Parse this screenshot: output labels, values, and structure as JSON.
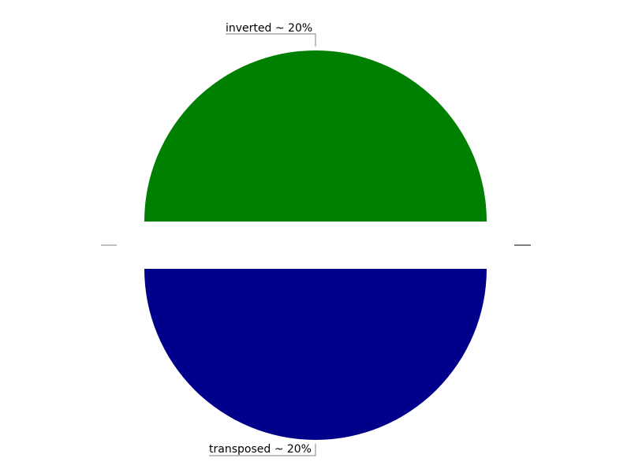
{
  "chart_data": {
    "type": "pie",
    "title": "",
    "slices": [
      {
        "label": "inverted ~ 20%",
        "value": 20,
        "color": "#008000"
      },
      {
        "label": "",
        "value": 0,
        "color": "#ffffff"
      },
      {
        "label": "transposed ~ 20%",
        "value": 20,
        "color": "#00008b"
      },
      {
        "label": "",
        "value": 0,
        "color": "#ffffff"
      }
    ],
    "legend": "none"
  }
}
